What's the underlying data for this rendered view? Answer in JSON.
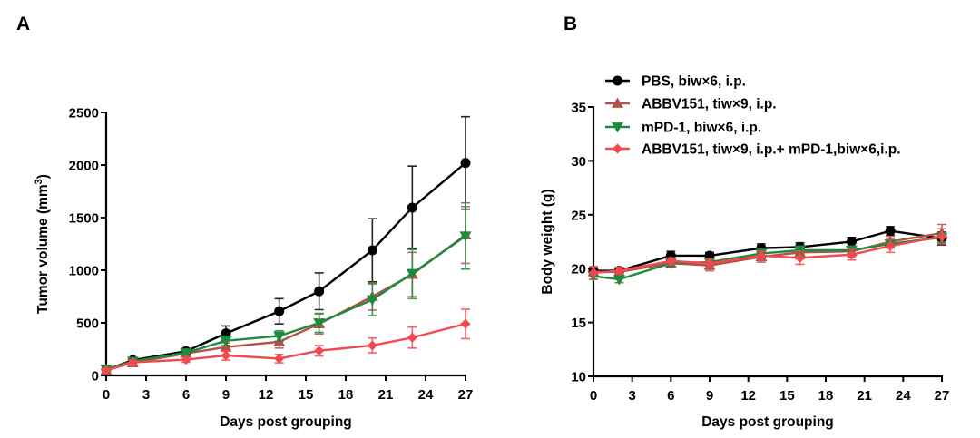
{
  "chart_data": [
    {
      "type": "line",
      "panel_label": "A",
      "title": "",
      "xlabel": "Days post grouping",
      "ylabel": "Tumor volume (mm",
      "ylabel_superscript": "3",
      "ylabel_suffix": ")",
      "xlim": [
        0,
        27
      ],
      "ylim": [
        0,
        2500
      ],
      "xticks": [
        0,
        3,
        6,
        9,
        12,
        15,
        18,
        21,
        24,
        27
      ],
      "yticks": [
        0,
        500,
        1000,
        1500,
        2000,
        2500
      ],
      "grid": false,
      "x": [
        0,
        2,
        6,
        9,
        13,
        16,
        20,
        23,
        27
      ],
      "series": [
        {
          "name": "PBS, biw×6, i.p.",
          "color": "#000000",
          "marker": "circle",
          "values": [
            55,
            145,
            230,
            400,
            610,
            800,
            1190,
            1595,
            2020
          ],
          "errors": [
            15,
            20,
            25,
            70,
            120,
            175,
            300,
            395,
            440
          ]
        },
        {
          "name": "ABBV151, tiw×9, i.p.",
          "color": "#b5504a",
          "marker": "triangle-up",
          "values": [
            50,
            120,
            210,
            270,
            320,
            490,
            750,
            960,
            1335
          ],
          "errors": [
            15,
            20,
            25,
            40,
            60,
            95,
            130,
            210,
            270
          ]
        },
        {
          "name": "mPD-1, biw×6, i.p.",
          "color": "#1e8a3e",
          "marker": "triangle-down",
          "values": [
            60,
            135,
            215,
            330,
            375,
            500,
            720,
            970,
            1325
          ],
          "errors": [
            15,
            20,
            25,
            45,
            50,
            90,
            150,
            240,
            315
          ]
        },
        {
          "name": "ABBV151, tiw×9, i.p.+ mPD-1,biw×6,i.p.",
          "color": "#f2484f",
          "marker": "diamond",
          "values": [
            50,
            125,
            150,
            190,
            160,
            235,
            285,
            360,
            490
          ],
          "errors": [
            15,
            20,
            25,
            45,
            40,
            50,
            70,
            100,
            140
          ]
        }
      ]
    },
    {
      "type": "line",
      "panel_label": "B",
      "title": "",
      "xlabel": "Days post grouping",
      "ylabel": "Body weight (g)",
      "xlim": [
        0,
        27
      ],
      "ylim": [
        10,
        35
      ],
      "xticks": [
        0,
        3,
        6,
        9,
        12,
        15,
        18,
        21,
        24,
        27
      ],
      "yticks": [
        10,
        15,
        20,
        25,
        30,
        35
      ],
      "grid": false,
      "legend_position": "top-right",
      "x": [
        0,
        2,
        6,
        9,
        13,
        16,
        20,
        23,
        27
      ],
      "series": [
        {
          "name": "PBS, biw×6, i.p.",
          "color": "#000000",
          "marker": "circle",
          "values": [
            19.8,
            19.8,
            21.2,
            21.2,
            21.9,
            22.0,
            22.5,
            23.5,
            22.8
          ],
          "errors": [
            0.3,
            0.3,
            0.4,
            0.3,
            0.4,
            0.4,
            0.4,
            0.4,
            0.6
          ]
        },
        {
          "name": "ABBV151, tiw×9, i.p.",
          "color": "#b5504a",
          "marker": "triangle-up",
          "values": [
            19.7,
            19.7,
            20.5,
            20.3,
            21.1,
            21.5,
            21.6,
            22.5,
            23.3
          ],
          "errors": [
            0.4,
            0.4,
            0.4,
            0.5,
            0.5,
            0.6,
            0.5,
            0.5,
            0.8
          ]
        },
        {
          "name": "mPD-1, biw×6, i.p.",
          "color": "#1e8a3e",
          "marker": "triangle-down",
          "values": [
            19.3,
            19.0,
            20.5,
            20.6,
            21.4,
            21.7,
            21.7,
            22.3,
            22.9
          ],
          "errors": [
            0.3,
            0.3,
            0.3,
            0.3,
            0.4,
            0.4,
            0.4,
            0.4,
            0.5
          ]
        },
        {
          "name": "ABBV151, tiw×9, i.p.+ mPD-1,biw×6,i.p.",
          "color": "#f2484f",
          "marker": "diamond",
          "values": [
            19.6,
            19.8,
            20.7,
            20.5,
            21.2,
            21.0,
            21.3,
            22.1,
            23.0
          ],
          "errors": [
            0.6,
            0.3,
            0.3,
            0.4,
            0.4,
            0.6,
            0.5,
            0.6,
            0.7
          ]
        }
      ]
    }
  ]
}
